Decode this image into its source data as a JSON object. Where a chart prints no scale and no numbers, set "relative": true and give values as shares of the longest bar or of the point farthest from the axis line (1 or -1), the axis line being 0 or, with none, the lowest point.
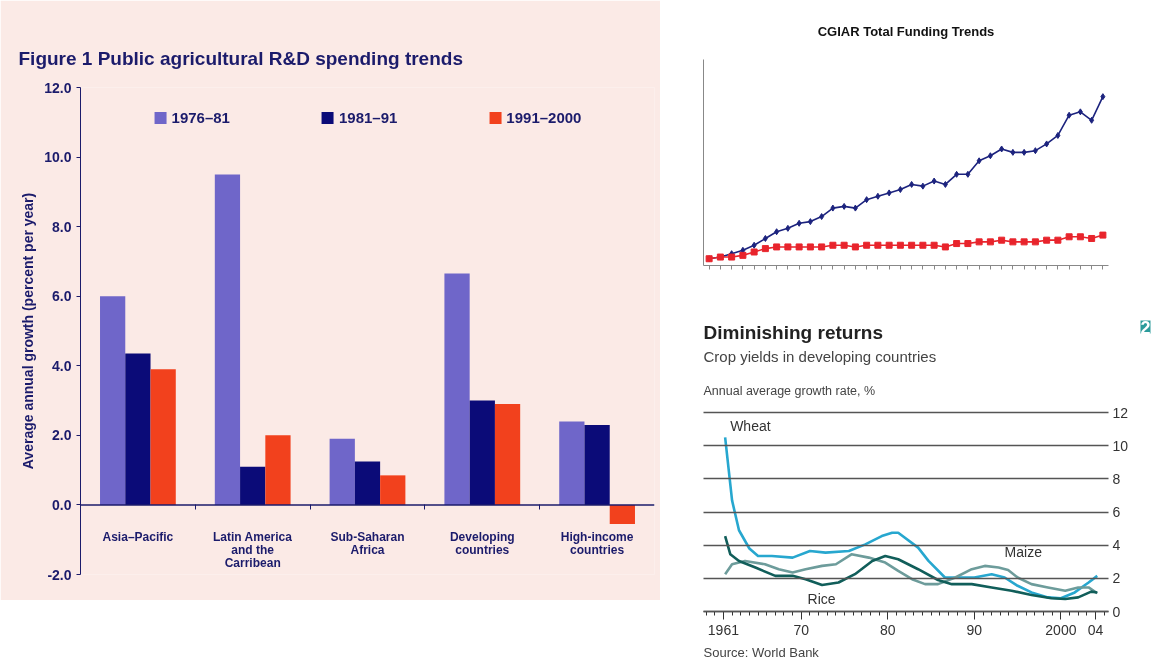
{
  "chart_data": [
    {
      "type": "bar",
      "title": "Figure 1 Public agricultural R&D spending trends",
      "ylabel": "Average annual growth (percent per year)",
      "categories": [
        "Asia–Pacific",
        "Latin America and the Carribean",
        "Sub-Saharan Africa",
        "Developing countries",
        "High-income countries"
      ],
      "ylim": [
        -2,
        12
      ],
      "yticks": [
        {
          "value": -2,
          "label": "-2.0"
        },
        {
          "value": 0,
          "label": "0.0"
        },
        {
          "value": 2,
          "label": "2.0"
        },
        {
          "value": 4,
          "label": "4.0"
        },
        {
          "value": 6,
          "label": "6.0"
        },
        {
          "value": 8,
          "label": "8.0"
        },
        {
          "value": 10,
          "label": "10.0"
        },
        {
          "value": 12,
          "label": "12.0"
        }
      ],
      "legend": "top",
      "ref_lines": [
        {
          "axis": "y",
          "value": 0,
          "color": "#1b1b6b"
        }
      ],
      "series": [
        {
          "name": "1976–81",
          "color": "#6f66c9",
          "values": [
            6.0,
            9.5,
            1.9,
            6.65,
            2.4
          ]
        },
        {
          "name": "1981–91",
          "color": "#0b0b78",
          "values": [
            4.35,
            1.1,
            1.25,
            3.0,
            2.3
          ]
        },
        {
          "name": "1991–2000",
          "color": "#f2411d",
          "values": [
            3.9,
            2.0,
            0.85,
            2.9,
            -0.55
          ]
        }
      ]
    },
    {
      "type": "line",
      "title": "CGIAR Total Funding Trends",
      "relative": true,
      "categories": [
        null,
        null,
        null,
        null,
        null,
        null,
        null,
        null,
        null,
        null,
        null,
        null,
        null,
        null,
        null,
        null,
        null,
        null,
        null,
        null,
        null,
        null,
        null,
        null,
        null,
        null,
        null,
        null,
        null,
        null,
        null,
        null,
        null,
        null,
        null,
        null
      ],
      "series": [
        {
          "color": "#1c237e",
          "marker": "diamond",
          "values": [
            0.04,
            0.05,
            0.07,
            0.09,
            0.12,
            0.16,
            0.2,
            0.22,
            0.25,
            0.26,
            0.29,
            0.34,
            0.35,
            0.34,
            0.39,
            0.41,
            0.43,
            0.45,
            0.48,
            0.47,
            0.5,
            0.48,
            0.54,
            0.54,
            0.62,
            0.65,
            0.69,
            0.67,
            0.67,
            0.68,
            0.72,
            0.77,
            0.89,
            0.91,
            0.86,
            1.0
          ]
        },
        {
          "color": "#e8242c",
          "marker": "square",
          "values": [
            0.04,
            0.05,
            0.05,
            0.06,
            0.08,
            0.1,
            0.11,
            0.11,
            0.11,
            0.11,
            0.11,
            0.12,
            0.12,
            0.11,
            0.12,
            0.12,
            0.12,
            0.12,
            0.12,
            0.12,
            0.12,
            0.11,
            0.13,
            0.13,
            0.14,
            0.14,
            0.15,
            0.14,
            0.14,
            0.14,
            0.15,
            0.15,
            0.17,
            0.17,
            0.16,
            0.18
          ]
        }
      ]
    },
    {
      "type": "line",
      "title": "Diminishing returns",
      "subtitle": "Crop yields in developing countries",
      "ylabel": "Annual average growth rate, %",
      "annotations": [
        "2",
        "Source: World Bank"
      ],
      "xlim": [
        1958.7,
        2005.5
      ],
      "ylim": [
        0,
        12
      ],
      "xticks": [
        1961,
        {
          "value": 1970,
          "label": "70"
        },
        {
          "value": 1980,
          "label": "80"
        },
        {
          "value": 1990,
          "label": "90"
        },
        2000,
        {
          "value": 2004,
          "label": "04"
        }
      ],
      "yticks": [
        0,
        2,
        4,
        6,
        8,
        10,
        12
      ],
      "grid": "y",
      "series": [
        {
          "name": "Wheat",
          "color": "#27a7cf",
          "x": [
            1961.2,
            1962,
            1962.8,
            1964,
            1965,
            1966.6,
            1969,
            1971,
            1972.8,
            1975.5,
            1977.4,
            1979.3,
            1980.5,
            1981.2,
            1983.5,
            1984.7,
            1986.6,
            1988.2,
            1990,
            1992,
            1993.5,
            1995,
            1996.6,
            1998.5,
            2000,
            2001.6,
            2003.2,
            2004.2
          ],
          "values": [
            10.5,
            6.7,
            4.9,
            3.8,
            3.35,
            3.35,
            3.25,
            3.65,
            3.55,
            3.65,
            4.05,
            4.55,
            4.75,
            4.75,
            3.85,
            3.05,
            2.05,
            2.05,
            2.05,
            2.25,
            2.05,
            1.55,
            1.15,
            0.85,
            0.8,
            1.15,
            1.75,
            2.15
          ]
        },
        {
          "name": "Maize",
          "color": "#6d9c9b",
          "x": [
            1961.2,
            1962,
            1963.5,
            1965.8,
            1967.4,
            1969,
            1970.5,
            1972.4,
            1974,
            1975.8,
            1977.8,
            1979.7,
            1981.2,
            1982.8,
            1984.3,
            1985.8,
            1987.8,
            1989.7,
            1991.2,
            1992.8,
            1993.9,
            1995,
            1996.6,
            1998.5,
            2000.5,
            2002,
            2003.2,
            2004.2
          ],
          "values": [
            2.25,
            2.85,
            3.05,
            2.85,
            2.55,
            2.35,
            2.55,
            2.75,
            2.85,
            3.45,
            3.25,
            2.95,
            2.45,
            1.95,
            1.65,
            1.65,
            2.05,
            2.55,
            2.75,
            2.65,
            2.5,
            2.05,
            1.65,
            1.45,
            1.25,
            1.45,
            1.45,
            1.1
          ]
        },
        {
          "name": "Rice",
          "color": "#115e5a",
          "x": [
            1961.2,
            1961.8,
            1962.8,
            1964.7,
            1967,
            1969,
            1970.5,
            1972.4,
            1974.3,
            1976.2,
            1978.2,
            1979.7,
            1981.2,
            1983.5,
            1985.8,
            1987.4,
            1989.7,
            1992,
            1994.3,
            1996.6,
            1998.9,
            2000.5,
            2002,
            2003.5,
            2004.2
          ],
          "values": [
            4.55,
            3.45,
            3.05,
            2.65,
            2.15,
            2.15,
            1.95,
            1.6,
            1.75,
            2.25,
            3.05,
            3.35,
            3.15,
            2.55,
            1.9,
            1.65,
            1.65,
            1.45,
            1.25,
            1.0,
            0.8,
            0.75,
            0.85,
            1.2,
            1.15
          ]
        }
      ]
    }
  ]
}
